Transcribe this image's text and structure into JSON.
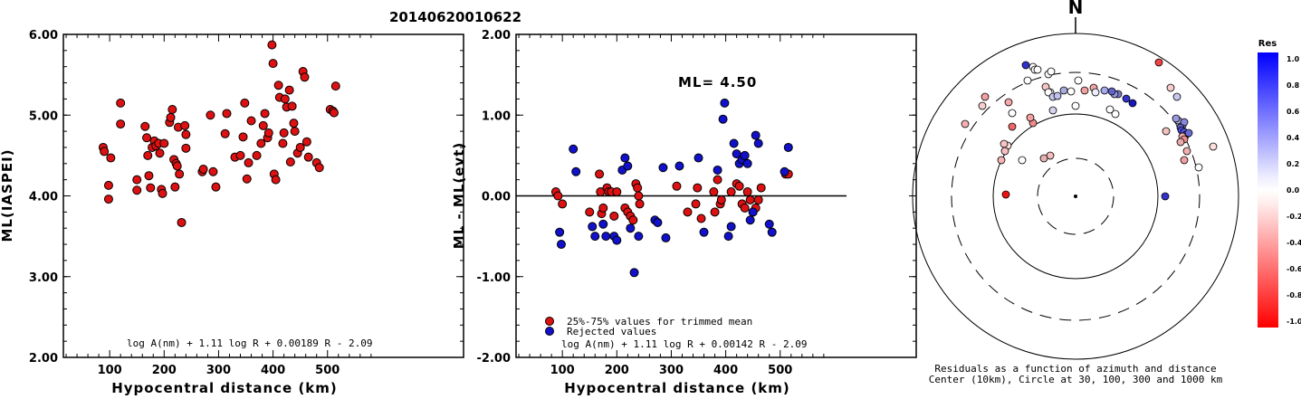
{
  "title": "20140620010622",
  "colors": {
    "red": "#dd1111",
    "blue": "#1111cc"
  },
  "chart_data": [
    {
      "type": "scatter",
      "name": "left",
      "xlabel": "Hypocentral distance (km)",
      "ylabel": "ML(IASPEI)",
      "xlim": [
        0,
        600
      ],
      "ylim": [
        2.0,
        6.0
      ],
      "x_ticks": [
        100,
        200,
        300,
        400,
        500
      ],
      "y_ticks": [
        "2.00",
        "3.00",
        "4.00",
        "5.00",
        "6.00"
      ],
      "formula": "log A(nm) + 1.11 log R + 0.00189 R - 2.09",
      "points": [
        [
          88,
          4.6
        ],
        [
          90,
          4.55
        ],
        [
          98,
          4.13
        ],
        [
          98,
          3.96
        ],
        [
          102,
          4.47
        ],
        [
          120,
          5.15
        ],
        [
          120,
          4.89
        ],
        [
          150,
          4.2
        ],
        [
          150,
          4.07
        ],
        [
          165,
          4.86
        ],
        [
          168,
          4.72
        ],
        [
          170,
          4.5
        ],
        [
          172,
          4.25
        ],
        [
          175,
          4.1
        ],
        [
          178,
          4.6
        ],
        [
          182,
          4.68
        ],
        [
          185,
          4.62
        ],
        [
          190,
          4.65
        ],
        [
          192,
          4.53
        ],
        [
          195,
          4.08
        ],
        [
          197,
          4.03
        ],
        [
          200,
          4.65
        ],
        [
          210,
          4.91
        ],
        [
          212,
          4.97
        ],
        [
          215,
          5.07
        ],
        [
          218,
          4.45
        ],
        [
          220,
          4.11
        ],
        [
          222,
          4.4
        ],
        [
          224,
          4.37
        ],
        [
          226,
          4.85
        ],
        [
          228,
          4.27
        ],
        [
          232,
          3.67
        ],
        [
          238,
          4.87
        ],
        [
          240,
          4.76
        ],
        [
          240,
          4.59
        ],
        [
          270,
          4.3
        ],
        [
          272,
          4.33
        ],
        [
          285,
          5.0
        ],
        [
          290,
          4.3
        ],
        [
          295,
          4.11
        ],
        [
          312,
          4.77
        ],
        [
          315,
          5.02
        ],
        [
          330,
          4.48
        ],
        [
          340,
          4.5
        ],
        [
          345,
          4.73
        ],
        [
          348,
          5.15
        ],
        [
          352,
          4.21
        ],
        [
          355,
          4.41
        ],
        [
          360,
          4.93
        ],
        [
          370,
          4.5
        ],
        [
          378,
          4.65
        ],
        [
          382,
          4.87
        ],
        [
          385,
          5.02
        ],
        [
          390,
          4.72
        ],
        [
          392,
          4.78
        ],
        [
          398,
          5.87
        ],
        [
          400,
          5.64
        ],
        [
          402,
          4.27
        ],
        [
          405,
          4.2
        ],
        [
          410,
          5.37
        ],
        [
          412,
          5.22
        ],
        [
          418,
          4.65
        ],
        [
          420,
          4.78
        ],
        [
          422,
          5.2
        ],
        [
          425,
          5.1
        ],
        [
          430,
          5.31
        ],
        [
          432,
          4.42
        ],
        [
          435,
          5.11
        ],
        [
          438,
          4.9
        ],
        [
          440,
          4.8
        ],
        [
          445,
          4.53
        ],
        [
          450,
          4.6
        ],
        [
          455,
          5.54
        ],
        [
          458,
          5.47
        ],
        [
          462,
          4.67
        ],
        [
          465,
          4.48
        ],
        [
          480,
          4.41
        ],
        [
          485,
          4.35
        ],
        [
          505,
          5.07
        ],
        [
          510,
          5.05
        ],
        [
          512,
          5.03
        ],
        [
          515,
          5.36
        ]
      ]
    },
    {
      "type": "scatter",
      "name": "middle",
      "xlabel": "Hypocentral distance (km)",
      "ylabel": "ML - ML(evt)",
      "xlim": [
        0,
        600
      ],
      "ylim": [
        -2.0,
        2.0
      ],
      "x_ticks": [
        100,
        200,
        300,
        400,
        500
      ],
      "y_ticks": [
        "-2.00",
        "-1.00",
        "0.00",
        "1.00",
        "2.00"
      ],
      "annotation": "ML= 4.50",
      "formula": "log A(nm) + 1.11 log R + 0.00142 R - 2.09",
      "legend": [
        "25%-75% values for trimmed mean",
        "Rejected values"
      ],
      "points_red": [
        [
          88,
          0.05
        ],
        [
          92,
          0.0
        ],
        [
          100,
          -0.1
        ],
        [
          150,
          -0.2
        ],
        [
          168,
          0.27
        ],
        [
          170,
          0.05
        ],
        [
          172,
          -0.22
        ],
        [
          175,
          -0.15
        ],
        [
          182,
          0.1
        ],
        [
          185,
          0.05
        ],
        [
          190,
          0.05
        ],
        [
          195,
          -0.25
        ],
        [
          200,
          0.05
        ],
        [
          215,
          -0.15
        ],
        [
          220,
          -0.2
        ],
        [
          225,
          -0.25
        ],
        [
          230,
          -0.3
        ],
        [
          235,
          0.15
        ],
        [
          238,
          0.1
        ],
        [
          240,
          0.0
        ],
        [
          242,
          -0.1
        ],
        [
          310,
          0.12
        ],
        [
          330,
          -0.2
        ],
        [
          345,
          -0.1
        ],
        [
          348,
          0.1
        ],
        [
          355,
          -0.28
        ],
        [
          378,
          0.05
        ],
        [
          380,
          -0.2
        ],
        [
          385,
          0.2
        ],
        [
          390,
          -0.1
        ],
        [
          392,
          -0.05
        ],
        [
          410,
          0.05
        ],
        [
          420,
          0.15
        ],
        [
          425,
          0.12
        ],
        [
          430,
          -0.1
        ],
        [
          435,
          -0.15
        ],
        [
          440,
          0.05
        ],
        [
          445,
          -0.05
        ],
        [
          450,
          -0.2
        ],
        [
          455,
          -0.15
        ],
        [
          460,
          -0.05
        ],
        [
          465,
          0.1
        ],
        [
          510,
          0.27
        ],
        [
          515,
          0.27
        ]
      ],
      "points_blue": [
        [
          95,
          -0.45
        ],
        [
          98,
          -0.6
        ],
        [
          120,
          0.58
        ],
        [
          125,
          0.3
        ],
        [
          155,
          -0.38
        ],
        [
          160,
          -0.5
        ],
        [
          175,
          -0.35
        ],
        [
          180,
          -0.5
        ],
        [
          195,
          -0.5
        ],
        [
          200,
          -0.55
        ],
        [
          210,
          0.32
        ],
        [
          215,
          0.47
        ],
        [
          220,
          0.37
        ],
        [
          225,
          -0.4
        ],
        [
          232,
          -0.95
        ],
        [
          240,
          -0.5
        ],
        [
          270,
          -0.3
        ],
        [
          275,
          -0.33
        ],
        [
          285,
          0.35
        ],
        [
          290,
          -0.52
        ],
        [
          315,
          0.37
        ],
        [
          350,
          0.47
        ],
        [
          360,
          -0.45
        ],
        [
          385,
          0.32
        ],
        [
          395,
          0.95
        ],
        [
          398,
          1.15
        ],
        [
          405,
          -0.5
        ],
        [
          410,
          -0.38
        ],
        [
          415,
          0.65
        ],
        [
          420,
          0.52
        ],
        [
          425,
          0.4
        ],
        [
          430,
          0.45
        ],
        [
          435,
          0.5
        ],
        [
          440,
          0.4
        ],
        [
          445,
          -0.3
        ],
        [
          450,
          -0.2
        ],
        [
          455,
          0.75
        ],
        [
          460,
          0.65
        ],
        [
          480,
          -0.35
        ],
        [
          485,
          -0.45
        ],
        [
          508,
          0.3
        ],
        [
          515,
          0.6
        ]
      ]
    },
    {
      "type": "scatter",
      "name": "polar",
      "north_label": "N",
      "caption1": "Residuals as a function of azimuth and distance",
      "caption2": "Center (10km), Circle at 30, 100, 300 and 1000 km",
      "colorbar_title": "Res",
      "colorbar_ticks": [
        "1.0",
        "0.8",
        "0.6",
        "0.4",
        "0.2",
        "0.0",
        "-0.2",
        "-0.4",
        "-0.6",
        "-0.8",
        "-1.0"
      ],
      "points": [
        [
          92,
          -148,
          "#ee4444"
        ],
        [
          100,
          -72,
          "#f4c0c0"
        ],
        [
          120,
          -40,
          "#f0a0a0"
        ],
        [
          123,
          -50,
          "#f3b0b0"
        ],
        [
          136,
          -32,
          "#ffffff"
        ],
        [
          152,
          -55,
          "#ffdede"
        ],
        [
          -77,
          -2,
          "#ee1111"
        ],
        [
          -47,
          -81,
          "#f28a8a"
        ],
        [
          -50,
          -87,
          "#f4a0a0"
        ],
        [
          -75,
          -56,
          "#ffdede"
        ],
        [
          -79,
          -58,
          "#f7c4c4"
        ],
        [
          -70,
          -77,
          "#ee6666"
        ],
        [
          -78,
          -50,
          "#f7bfbf"
        ],
        [
          -82,
          -40,
          "#f5b3b3"
        ],
        [
          -122,
          -80,
          "#f5b0b0"
        ],
        [
          -103,
          -100,
          "#f8cfcf"
        ],
        [
          -100,
          -110,
          "#f2a0a0"
        ],
        [
          -28,
          -45,
          "#f6bbbb"
        ],
        [
          -35,
          -42,
          "#e7b2b2"
        ],
        [
          -28,
          -115,
          "#ffffff"
        ],
        [
          -25,
          -95,
          "#d4d4ee"
        ],
        [
          20,
          -120,
          "#f0a3a3"
        ],
        [
          22,
          -115,
          "#eeeeff"
        ],
        [
          32,
          -117,
          "#a8a8ee"
        ],
        [
          38,
          -96,
          "#ffffff"
        ],
        [
          44,
          -91,
          "#ffffff"
        ],
        [
          99,
          0,
          "#3333cc"
        ],
        [
          0,
          -100,
          "#ffffff"
        ],
        [
          -59,
          -40,
          "#ffffff"
        ],
        [
          -33,
          -121,
          "#f5c5c5"
        ],
        [
          -55,
          -145,
          "#3030cc"
        ],
        [
          -47,
          -143,
          "#ffffff"
        ],
        [
          -45,
          -140,
          "#ffffff"
        ],
        [
          -42,
          -140,
          "#ffffff"
        ],
        [
          -70,
          -92,
          "#ffffff"
        ],
        [
          -74,
          -104,
          "#f4a8a8"
        ],
        [
          105,
          -120,
          "#f9cccc"
        ],
        [
          112,
          -110,
          "#c8c8ee"
        ],
        [
          115,
          -80,
          "#ddddff"
        ],
        [
          113,
          -84,
          "#bbbbee"
        ],
        [
          111,
          -86,
          "#9999dd"
        ],
        [
          118,
          -78,
          "#aaaadd"
        ],
        [
          120,
          -82,
          "#8888dd"
        ],
        [
          116,
          -76,
          "#6666cc"
        ],
        [
          117,
          -73,
          "#4a4ad9"
        ],
        [
          120,
          -71,
          "#5555dd"
        ],
        [
          122,
          -68,
          "#3d3dcc"
        ],
        [
          125,
          -70,
          "#6a6ad6"
        ],
        [
          118,
          -66,
          "#f4b0b0"
        ],
        [
          120,
          -63,
          "#ee8e8e"
        ],
        [
          116,
          -60,
          "#eeaaaa"
        ],
        [
          63,
          -103,
          "#1717bb"
        ],
        [
          56,
          -108,
          "#3333cc"
        ],
        [
          -30,
          -115,
          "#ffffff"
        ],
        [
          47,
          -113,
          "#7a7acc"
        ],
        [
          43,
          -113,
          "#9898dd"
        ],
        [
          40,
          -116,
          "#6363cc"
        ],
        [
          -25,
          -110,
          "#c8c8ee"
        ],
        [
          -5,
          -116,
          "#ffffff"
        ],
        [
          -13,
          -117,
          "#aaaadd"
        ],
        [
          10,
          -117,
          "#f0a0a0"
        ],
        [
          -30,
          -135,
          "#fafafa"
        ],
        [
          -27,
          -138,
          "#ffffff"
        ],
        [
          -53,
          -128,
          "#ffffff"
        ],
        [
          -20,
          -111,
          "#c0c0ee"
        ],
        [
          3,
          -128,
          "#ffffff"
        ]
      ]
    }
  ]
}
